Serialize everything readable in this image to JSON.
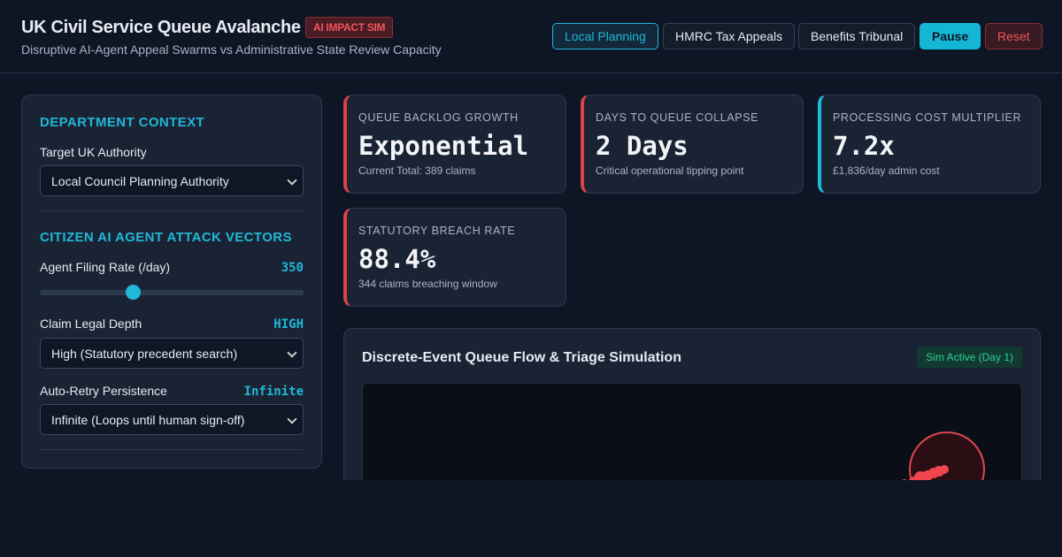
{
  "header": {
    "title": "UK Civil Service Queue Avalanche",
    "badge": "AI IMPACT SIM",
    "subtitle": "Disruptive AI-Agent Appeal Swarms vs Administrative State Review Capacity",
    "buttons": [
      "Local Planning",
      "HMRC Tax Appeals",
      "Benefits Tribunal",
      "Pause",
      "Reset"
    ]
  },
  "sidebar": {
    "section1": {
      "heading": "DEPARTMENT CONTEXT",
      "field": {
        "label": "Target UK Authority",
        "value": "Local Council Planning Authority"
      }
    },
    "section2": {
      "heading": "CITIZEN AI AGENT ATTACK VECTORS",
      "filing": {
        "label": "Agent Filing Rate (/day)",
        "value": "350"
      },
      "depth": {
        "label": "Claim Legal Depth",
        "badge": "HIGH",
        "value": "High (Statutory precedent search)"
      },
      "retry": {
        "label": "Auto-Retry Persistence",
        "badge": "Infinite",
        "value": "Infinite (Loops until human sign-off)"
      }
    }
  },
  "cards": [
    {
      "label": "QUEUE BACKLOG GROWTH",
      "value": "Exponential",
      "note": "Current Total: 389 claims"
    },
    {
      "label": "DAYS TO QUEUE COLLAPSE",
      "value": "2 Days",
      "note": "Critical operational tipping point"
    },
    {
      "label": "PROCESSING COST MULTIPLIER",
      "value": "7.2x",
      "note": "£1,836/day admin cost"
    },
    {
      "label": "STATUTORY BREACH RATE",
      "value": "88.4%",
      "note": "344 claims breaching window"
    }
  ],
  "simulation": {
    "title": "Discrete-Event Queue Flow & Triage Simulation",
    "status": "Sim Active (Day 1)"
  }
}
